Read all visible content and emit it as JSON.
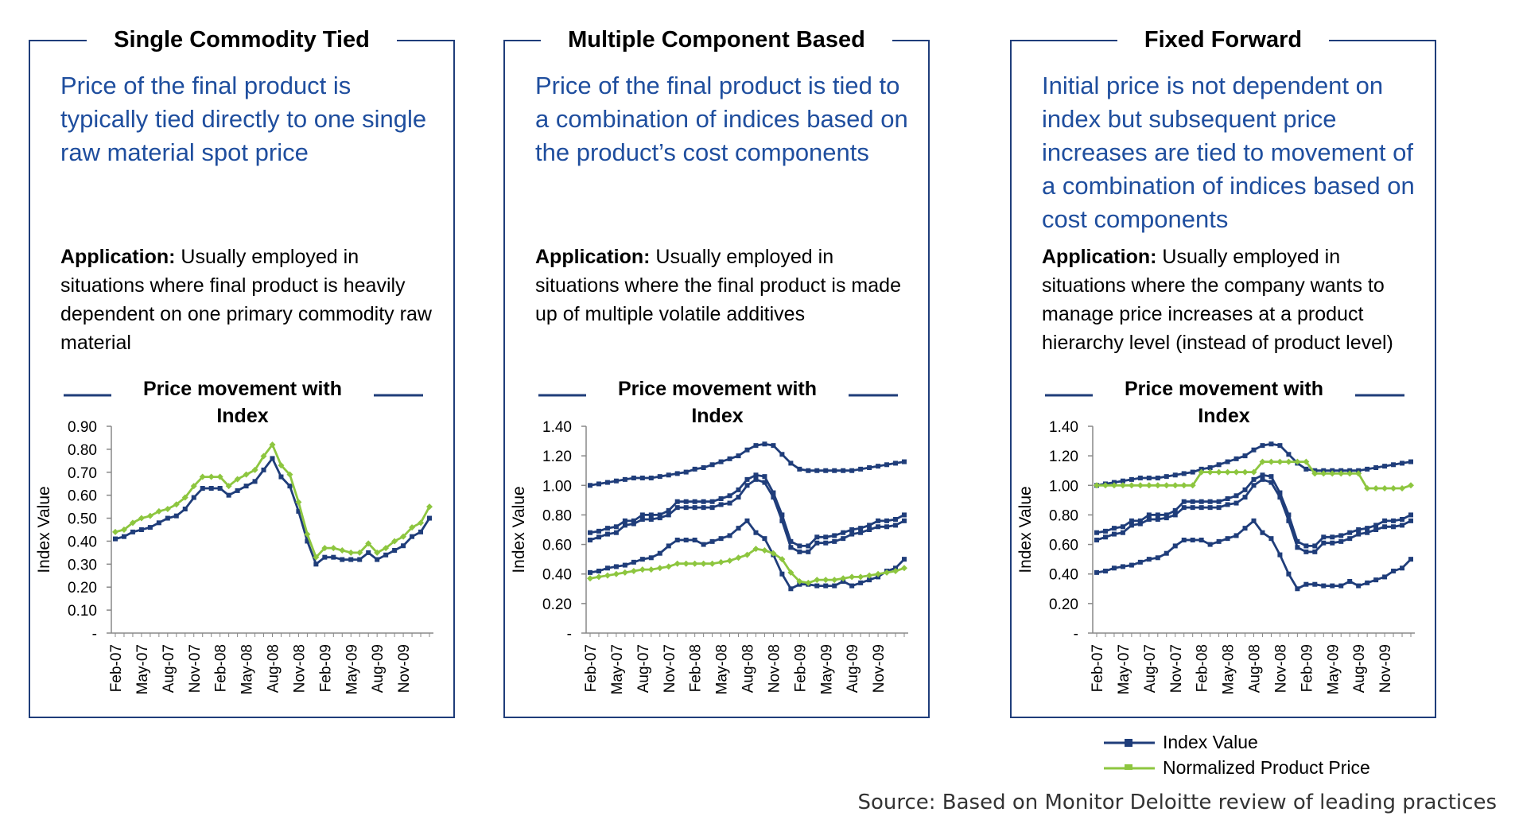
{
  "panels": [
    {
      "title": "Single Commodity Tied",
      "description": "Price of the final product is typically tied directly to one single raw material spot price",
      "application_label": "Application:",
      "application_text": " Usually employed in situations where final product is heavily dependent on one primary commodity raw material"
    },
    {
      "title": "Multiple Component Based",
      "description": "Price of the final product is tied to a combination of indices based on the product’s cost components",
      "application_label": "Application:",
      "application_text": " Usually employed in situations where the final product is made up of multiple volatile additives"
    },
    {
      "title": "Fixed Forward",
      "description": "Initial price is not dependent on index but subsequent price increases are tied to movement of a combination of indices based on cost components",
      "application_label": "Application:",
      "application_text": " Usually employed in situations where the company wants to manage price increases at a product hierarchy level (instead of product level)"
    }
  ],
  "legend": {
    "index_label": "Index Value",
    "product_label": "Normalized Product Price"
  },
  "source": "Source: Based on Monitor Deloitte review of leading practices",
  "colors": {
    "index": "#1f3d7a",
    "product": "#8dc63f",
    "text_blue": "#1f4e9e"
  },
  "chart_data": [
    {
      "type": "line",
      "title_lines": [
        "Price movement with",
        "Index"
      ],
      "ylabel": "Index Value",
      "ylim": [
        0,
        0.9
      ],
      "yticks": [
        "-",
        "0.10",
        "0.20",
        "0.30",
        "0.40",
        "0.50",
        "0.60",
        "0.70",
        "0.80",
        "0.90"
      ],
      "x_tick_labels": [
        "Feb-07",
        "May-07",
        "Aug-07",
        "Nov-07",
        "Feb-08",
        "May-08",
        "Aug-08",
        "Nov-08",
        "Feb-09",
        "May-09",
        "Aug-09",
        "Nov-09"
      ],
      "series": [
        {
          "name": "Index Value",
          "role": "index",
          "values": [
            0.41,
            0.42,
            0.44,
            0.45,
            0.46,
            0.48,
            0.5,
            0.51,
            0.54,
            0.59,
            0.63,
            0.63,
            0.63,
            0.6,
            0.62,
            0.64,
            0.66,
            0.71,
            0.76,
            0.68,
            0.64,
            0.53,
            0.4,
            0.3,
            0.33,
            0.33,
            0.32,
            0.32,
            0.32,
            0.35,
            0.32,
            0.34,
            0.36,
            0.38,
            0.42,
            0.44,
            0.5
          ]
        },
        {
          "name": "Normalized Product Price",
          "role": "product",
          "values": [
            0.44,
            0.45,
            0.48,
            0.5,
            0.51,
            0.53,
            0.54,
            0.56,
            0.59,
            0.64,
            0.68,
            0.68,
            0.68,
            0.64,
            0.67,
            0.69,
            0.71,
            0.77,
            0.82,
            0.73,
            0.69,
            0.57,
            0.43,
            0.33,
            0.37,
            0.37,
            0.36,
            0.35,
            0.35,
            0.39,
            0.35,
            0.37,
            0.4,
            0.42,
            0.46,
            0.48,
            0.55
          ]
        }
      ]
    },
    {
      "type": "line",
      "title_lines": [
        "Price movement with",
        "Index"
      ],
      "ylabel": "Index Value",
      "ylim": [
        0,
        1.4
      ],
      "yticks": [
        "-",
        "0.20",
        "0.40",
        "0.60",
        "0.80",
        "1.00",
        "1.20",
        "1.40"
      ],
      "x_tick_labels": [
        "Feb-07",
        "May-07",
        "Aug-07",
        "Nov-07",
        "Feb-08",
        "May-08",
        "Aug-08",
        "Nov-08",
        "Feb-09",
        "May-09",
        "Aug-09",
        "Nov-09"
      ],
      "series": [
        {
          "name": "Index Value",
          "role": "index",
          "values": [
            1.0,
            1.01,
            1.02,
            1.03,
            1.04,
            1.05,
            1.05,
            1.05,
            1.06,
            1.07,
            1.08,
            1.09,
            1.11,
            1.12,
            1.14,
            1.16,
            1.18,
            1.2,
            1.24,
            1.27,
            1.28,
            1.27,
            1.21,
            1.15,
            1.11,
            1.1,
            1.1,
            1.1,
            1.1,
            1.1,
            1.1,
            1.11,
            1.12,
            1.13,
            1.14,
            1.15,
            1.16
          ]
        },
        {
          "name": "Index Value",
          "role": "index",
          "values": [
            0.68,
            0.69,
            0.71,
            0.72,
            0.76,
            0.76,
            0.8,
            0.8,
            0.8,
            0.83,
            0.89,
            0.89,
            0.89,
            0.89,
            0.89,
            0.91,
            0.93,
            0.97,
            1.04,
            1.07,
            1.06,
            0.95,
            0.8,
            0.62,
            0.59,
            0.59,
            0.65,
            0.65,
            0.66,
            0.68,
            0.7,
            0.71,
            0.73,
            0.76,
            0.76,
            0.77,
            0.8
          ]
        },
        {
          "name": "Index Value",
          "role": "index",
          "values": [
            0.63,
            0.65,
            0.67,
            0.68,
            0.73,
            0.74,
            0.77,
            0.77,
            0.78,
            0.8,
            0.85,
            0.85,
            0.85,
            0.85,
            0.85,
            0.87,
            0.88,
            0.92,
            1.0,
            1.04,
            1.02,
            0.92,
            0.76,
            0.58,
            0.55,
            0.55,
            0.61,
            0.61,
            0.62,
            0.64,
            0.67,
            0.68,
            0.7,
            0.72,
            0.72,
            0.73,
            0.76
          ]
        },
        {
          "name": "Index Value",
          "role": "index",
          "values": [
            0.41,
            0.42,
            0.44,
            0.45,
            0.46,
            0.48,
            0.5,
            0.51,
            0.54,
            0.59,
            0.63,
            0.63,
            0.63,
            0.6,
            0.62,
            0.64,
            0.66,
            0.71,
            0.76,
            0.68,
            0.64,
            0.53,
            0.4,
            0.3,
            0.33,
            0.33,
            0.32,
            0.32,
            0.32,
            0.35,
            0.32,
            0.34,
            0.36,
            0.38,
            0.42,
            0.44,
            0.5
          ]
        },
        {
          "name": "Normalized Product Price",
          "role": "product",
          "values": [
            0.37,
            0.38,
            0.39,
            0.4,
            0.41,
            0.42,
            0.43,
            0.43,
            0.44,
            0.45,
            0.47,
            0.47,
            0.47,
            0.47,
            0.47,
            0.48,
            0.49,
            0.51,
            0.53,
            0.57,
            0.56,
            0.54,
            0.5,
            0.41,
            0.35,
            0.34,
            0.36,
            0.36,
            0.36,
            0.37,
            0.38,
            0.38,
            0.39,
            0.4,
            0.41,
            0.42,
            0.44
          ]
        }
      ]
    },
    {
      "type": "line",
      "title_lines": [
        "Price movement with",
        "Index"
      ],
      "ylabel": "Index Value",
      "ylim": [
        0,
        1.4
      ],
      "yticks": [
        "-",
        "0.20",
        "0.40",
        "0.60",
        "0.80",
        "1.00",
        "1.20",
        "1.40"
      ],
      "x_tick_labels": [
        "Feb-07",
        "May-07",
        "Aug-07",
        "Nov-07",
        "Feb-08",
        "May-08",
        "Aug-08",
        "Nov-08",
        "Feb-09",
        "May-09",
        "Aug-09",
        "Nov-09"
      ],
      "series": [
        {
          "name": "Index Value",
          "role": "index",
          "values": [
            1.0,
            1.01,
            1.02,
            1.03,
            1.04,
            1.05,
            1.05,
            1.05,
            1.06,
            1.07,
            1.08,
            1.09,
            1.11,
            1.12,
            1.14,
            1.16,
            1.18,
            1.2,
            1.24,
            1.27,
            1.28,
            1.27,
            1.21,
            1.15,
            1.11,
            1.1,
            1.1,
            1.1,
            1.1,
            1.1,
            1.1,
            1.11,
            1.12,
            1.13,
            1.14,
            1.15,
            1.16
          ]
        },
        {
          "name": "Index Value",
          "role": "index",
          "values": [
            0.68,
            0.69,
            0.71,
            0.72,
            0.76,
            0.76,
            0.8,
            0.8,
            0.8,
            0.83,
            0.89,
            0.89,
            0.89,
            0.89,
            0.89,
            0.91,
            0.93,
            0.97,
            1.04,
            1.07,
            1.06,
            0.95,
            0.8,
            0.62,
            0.59,
            0.59,
            0.65,
            0.65,
            0.66,
            0.68,
            0.7,
            0.71,
            0.73,
            0.76,
            0.76,
            0.77,
            0.8
          ]
        },
        {
          "name": "Index Value",
          "role": "index",
          "values": [
            0.63,
            0.65,
            0.67,
            0.68,
            0.73,
            0.74,
            0.77,
            0.77,
            0.78,
            0.8,
            0.85,
            0.85,
            0.85,
            0.85,
            0.85,
            0.87,
            0.88,
            0.92,
            1.0,
            1.04,
            1.02,
            0.92,
            0.76,
            0.58,
            0.55,
            0.55,
            0.61,
            0.61,
            0.62,
            0.64,
            0.67,
            0.68,
            0.7,
            0.72,
            0.72,
            0.73,
            0.76
          ]
        },
        {
          "name": "Index Value",
          "role": "index",
          "values": [
            0.41,
            0.42,
            0.44,
            0.45,
            0.46,
            0.48,
            0.5,
            0.51,
            0.54,
            0.59,
            0.63,
            0.63,
            0.63,
            0.6,
            0.62,
            0.64,
            0.66,
            0.71,
            0.76,
            0.68,
            0.64,
            0.53,
            0.4,
            0.3,
            0.33,
            0.33,
            0.32,
            0.32,
            0.32,
            0.35,
            0.32,
            0.34,
            0.36,
            0.38,
            0.42,
            0.44,
            0.5
          ]
        },
        {
          "name": "Normalized Product Price",
          "role": "product",
          "values": [
            1.0,
            1.0,
            1.0,
            1.0,
            1.0,
            1.0,
            1.0,
            1.0,
            1.0,
            1.0,
            1.0,
            1.0,
            1.09,
            1.09,
            1.09,
            1.09,
            1.09,
            1.09,
            1.09,
            1.16,
            1.16,
            1.16,
            1.16,
            1.16,
            1.16,
            1.08,
            1.08,
            1.08,
            1.08,
            1.08,
            1.08,
            0.98,
            0.98,
            0.98,
            0.98,
            0.98,
            1.0
          ]
        }
      ]
    }
  ]
}
